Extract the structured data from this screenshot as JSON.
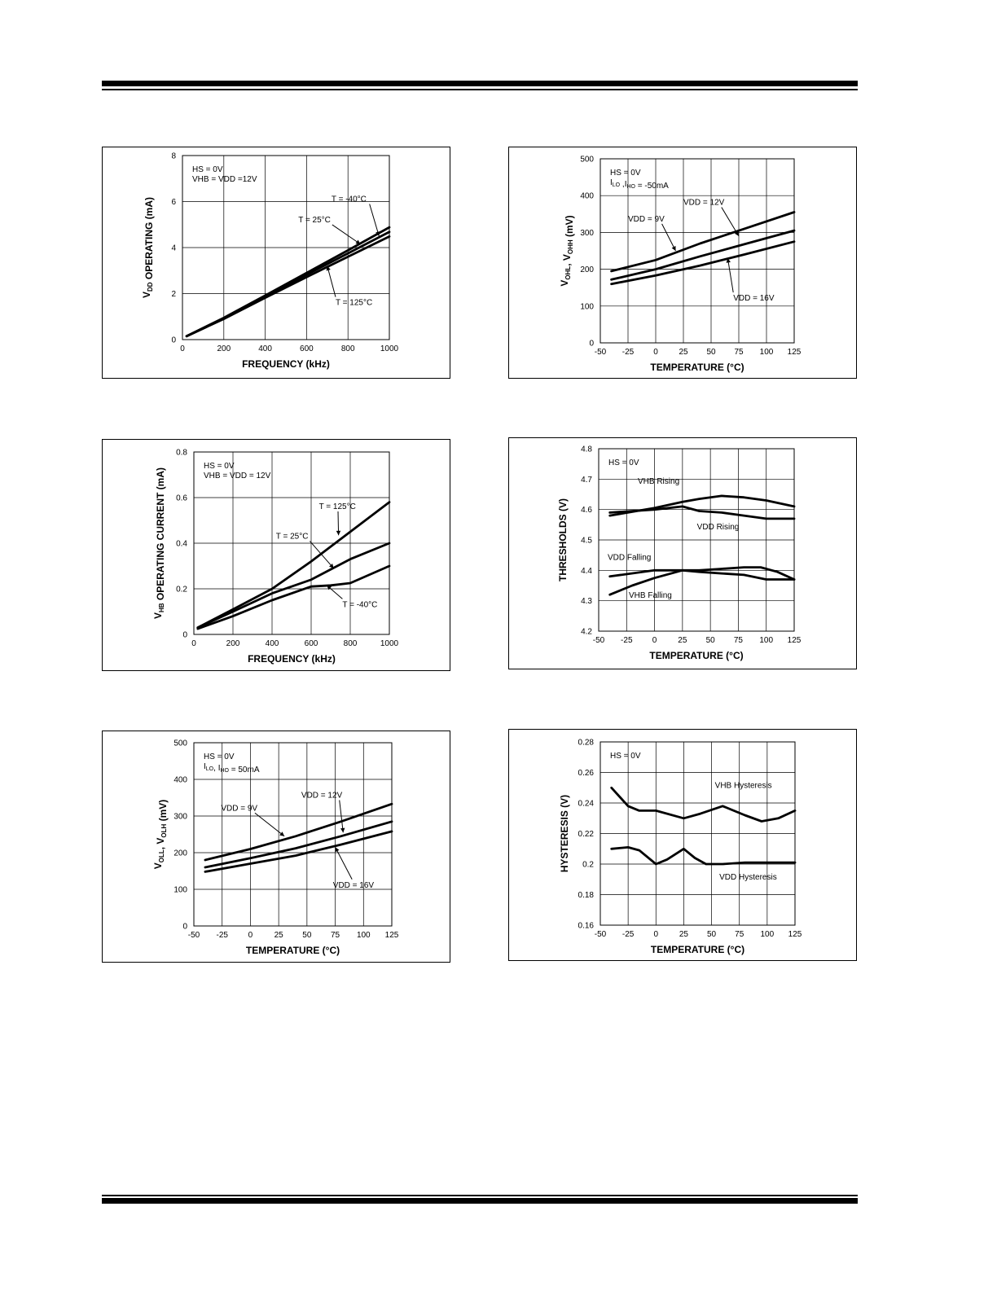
{
  "chart_data": [
    {
      "type": "line",
      "xlabel": "FREQUENCY (kHz)",
      "ylabel": "V_DD OPERATING (mA)",
      "ylabel_parts": [
        [
          "V",
          ""
        ],
        [
          "DD",
          "sub"
        ],
        [
          " OPERATING  (mA)",
          ""
        ]
      ],
      "xlim": [
        0,
        1000
      ],
      "ylim": [
        0,
        8
      ],
      "xticks": [
        0,
        200,
        400,
        600,
        800,
        1000
      ],
      "yticks": [
        0,
        2,
        4,
        6,
        8
      ],
      "conditions": [
        "HS = 0V",
        "VHB = VDD  =12V"
      ],
      "series": [
        {
          "name": "T = -40°C",
          "x": [
            20,
            200,
            400,
            600,
            800,
            1000
          ],
          "y": [
            0.15,
            0.95,
            1.92,
            2.9,
            3.88,
            4.88
          ]
        },
        {
          "name": "T = 25°C",
          "x": [
            20,
            200,
            400,
            600,
            800,
            1000
          ],
          "y": [
            0.15,
            0.92,
            1.88,
            2.82,
            3.75,
            4.68
          ]
        },
        {
          "name": "T = 125°C",
          "x": [
            20,
            200,
            400,
            600,
            800,
            1000
          ],
          "y": [
            0.15,
            0.9,
            1.82,
            2.72,
            3.6,
            4.48
          ]
        }
      ],
      "labels": [
        {
          "text": "T = -40°C",
          "at": [
            720,
            6.0
          ],
          "to": [
            950,
            4.5
          ]
        },
        {
          "text": "T = 25°C",
          "at": [
            560,
            5.1
          ],
          "to": [
            860,
            4.15
          ]
        },
        {
          "text": "T = 125°C",
          "at": [
            740,
            1.5
          ],
          "to": [
            700,
            3.2
          ]
        }
      ]
    },
    {
      "type": "line",
      "xlabel": "TEMPERATURE (°C)",
      "ylabel": "V_OHL, V_OHH (mV)",
      "ylabel_parts": [
        [
          "V",
          ""
        ],
        [
          "OHL",
          "sub"
        ],
        [
          ", V",
          ""
        ],
        [
          "OHH",
          "sub"
        ],
        [
          " (mV)",
          ""
        ]
      ],
      "xlim": [
        -50,
        125
      ],
      "ylim": [
        0,
        500
      ],
      "xticks": [
        -50,
        -25,
        0,
        25,
        50,
        75,
        100,
        125
      ],
      "yticks": [
        0,
        100,
        200,
        300,
        400,
        500
      ],
      "conditions": [
        "HS = 0V",
        "I_LO ,I_HO =  -50mA"
      ],
      "series": [
        {
          "name": "VDD = 9V",
          "x": [
            -40,
            0,
            40,
            80,
            125
          ],
          "y": [
            195,
            225,
            270,
            310,
            355
          ]
        },
        {
          "name": "VDD = 12V",
          "x": [
            -40,
            0,
            40,
            80,
            125
          ],
          "y": [
            172,
            200,
            235,
            268,
            305
          ]
        },
        {
          "name": "VDD = 16V",
          "x": [
            -40,
            0,
            40,
            80,
            125
          ],
          "y": [
            160,
            183,
            210,
            240,
            275
          ]
        }
      ],
      "labels": [
        {
          "text": "VDD = 12V",
          "at": [
            25,
            375
          ],
          "to": [
            75,
            290
          ]
        },
        {
          "text": "VDD = 9V",
          "at": [
            -25,
            330
          ],
          "to": [
            18,
            250
          ]
        },
        {
          "text": "VDD = 16V",
          "at": [
            70,
            115
          ],
          "to": [
            65,
            230
          ]
        }
      ]
    },
    {
      "type": "line",
      "xlabel": "FREQUENCY (kHz)",
      "ylabel": "V_HB OPERATING CURRENT (mA)",
      "ylabel_parts": [
        [
          "V",
          ""
        ],
        [
          "HB",
          "sub"
        ],
        [
          " OPERATING CURRENT (mA)",
          ""
        ]
      ],
      "xlim": [
        0,
        1000
      ],
      "ylim": [
        0,
        0.8
      ],
      "xticks": [
        0,
        200,
        400,
        600,
        800,
        1000
      ],
      "yticks": [
        0,
        0.2,
        0.4,
        0.6,
        0.8
      ],
      "conditions": [
        "HS = 0V",
        "VHB = VDD = 12V"
      ],
      "series": [
        {
          "name": "T = 125°C",
          "x": [
            20,
            200,
            400,
            600,
            800,
            1000
          ],
          "y": [
            0.03,
            0.11,
            0.2,
            0.32,
            0.45,
            0.58
          ]
        },
        {
          "name": "T = 25°C",
          "x": [
            20,
            200,
            400,
            600,
            800,
            1000
          ],
          "y": [
            0.03,
            0.1,
            0.18,
            0.24,
            0.33,
            0.4
          ]
        },
        {
          "name": "T = -40°C",
          "x": [
            20,
            200,
            400,
            600,
            700,
            800,
            1000
          ],
          "y": [
            0.025,
            0.08,
            0.15,
            0.21,
            0.215,
            0.225,
            0.3
          ]
        }
      ],
      "labels": [
        {
          "text": "T = 125°C",
          "at": [
            640,
            0.55
          ],
          "to": [
            740,
            0.435
          ]
        },
        {
          "text": "T = 25°C",
          "at": [
            420,
            0.42
          ],
          "to": [
            715,
            0.29
          ]
        },
        {
          "text": "T = -40°C",
          "at": [
            760,
            0.12
          ],
          "to": [
            680,
            0.215
          ]
        }
      ]
    },
    {
      "type": "line",
      "xlabel": "TEMPERATURE (°C)",
      "ylabel": "THRESHOLDS (V)",
      "ylabel_parts": [
        [
          "THRESHOLDS (V)",
          ""
        ]
      ],
      "xlim": [
        -50,
        125
      ],
      "ylim": [
        4.2,
        4.8
      ],
      "xticks": [
        -50,
        -25,
        0,
        25,
        50,
        75,
        100,
        125
      ],
      "yticks": [
        4.2,
        4.3,
        4.4,
        4.5,
        4.6,
        4.7,
        4.8
      ],
      "conditions": [
        "HS = 0V"
      ],
      "series": [
        {
          "name": "VHB Rising",
          "x": [
            -40,
            0,
            25,
            40,
            60,
            80,
            100,
            125
          ],
          "y": [
            4.58,
            4.605,
            4.625,
            4.635,
            4.645,
            4.64,
            4.63,
            4.61
          ]
        },
        {
          "name": "VDD Rising",
          "x": [
            -40,
            0,
            25,
            40,
            60,
            80,
            100,
            125
          ],
          "y": [
            4.59,
            4.6,
            4.61,
            4.595,
            4.59,
            4.58,
            4.57,
            4.57
          ]
        },
        {
          "name": "VDD Falling",
          "x": [
            -40,
            0,
            25,
            40,
            60,
            80,
            100,
            125
          ],
          "y": [
            4.38,
            4.4,
            4.4,
            4.395,
            4.39,
            4.385,
            4.37,
            4.37
          ]
        },
        {
          "name": "VHB Falling",
          "x": [
            -40,
            -20,
            0,
            25,
            40,
            60,
            80,
            95,
            110,
            125
          ],
          "y": [
            4.32,
            4.35,
            4.375,
            4.4,
            4.4,
            4.405,
            4.41,
            4.41,
            4.395,
            4.37
          ]
        }
      ],
      "labels": [
        {
          "text": "VHB Rising",
          "at": [
            -15,
            4.685
          ]
        },
        {
          "text": "VDD Rising",
          "at": [
            38,
            4.535
          ]
        },
        {
          "text": "VDD Falling",
          "at": [
            -42,
            4.435
          ]
        },
        {
          "text": "VHB Falling",
          "at": [
            -23,
            4.31
          ]
        }
      ]
    },
    {
      "type": "line",
      "xlabel": "TEMPERATURE (°C)",
      "ylabel": "V_OLL, V_OLH (mV)",
      "ylabel_parts": [
        [
          "V",
          ""
        ],
        [
          "OLL",
          "sub"
        ],
        [
          ", V",
          ""
        ],
        [
          "OLH",
          "sub"
        ],
        [
          " (mV)",
          ""
        ]
      ],
      "xlim": [
        -50,
        125
      ],
      "ylim": [
        0,
        500
      ],
      "xticks": [
        -50,
        -25,
        0,
        25,
        50,
        75,
        100,
        125
      ],
      "yticks": [
        0,
        100,
        200,
        300,
        400,
        500
      ],
      "conditions": [
        "HS = 0V",
        "I_LO, I_HO =  50mA"
      ],
      "series": [
        {
          "name": "VDD = 9V",
          "x": [
            -40,
            0,
            40,
            80,
            125
          ],
          "y": [
            180,
            210,
            245,
            285,
            333
          ]
        },
        {
          "name": "VDD = 12V",
          "x": [
            -40,
            0,
            40,
            80,
            125
          ],
          "y": [
            160,
            185,
            212,
            245,
            285
          ]
        },
        {
          "name": "VDD = 16V",
          "x": [
            -40,
            0,
            40,
            80,
            125
          ],
          "y": [
            148,
            170,
            192,
            222,
            258
          ]
        }
      ],
      "labels": [
        {
          "text": "VDD = 12V",
          "at": [
            45,
            350
          ],
          "to": [
            82,
            255
          ]
        },
        {
          "text": "VDD = 9V",
          "at": [
            -26,
            315
          ],
          "to": [
            30,
            245
          ]
        },
        {
          "text": "VDD = 16V",
          "at": [
            73,
            105
          ],
          "to": [
            75,
            215
          ]
        }
      ]
    },
    {
      "type": "line",
      "xlabel": "TEMPERATURE (°C)",
      "ylabel": "HYSTERESIS (V)",
      "ylabel_parts": [
        [
          "HYSTERESIS (V)",
          ""
        ]
      ],
      "xlim": [
        -50,
        125
      ],
      "ylim": [
        0.16,
        0.28
      ],
      "xticks": [
        -50,
        -25,
        0,
        25,
        50,
        75,
        100,
        125
      ],
      "yticks": [
        0.16,
        0.18,
        0.2,
        0.22,
        0.24,
        0.26,
        0.28
      ],
      "conditions": [
        "HS = 0V"
      ],
      "series": [
        {
          "name": "VHB Hysteresis",
          "x": [
            -40,
            -25,
            -15,
            0,
            25,
            40,
            60,
            80,
            95,
            110,
            125
          ],
          "y": [
            0.25,
            0.238,
            0.235,
            0.235,
            0.23,
            0.233,
            0.238,
            0.232,
            0.228,
            0.23,
            0.235
          ]
        },
        {
          "name": "VDD Hysteresis",
          "x": [
            -40,
            -25,
            -15,
            0,
            10,
            25,
            35,
            45,
            60,
            80,
            100,
            125
          ],
          "y": [
            0.21,
            0.211,
            0.209,
            0.2,
            0.203,
            0.21,
            0.204,
            0.2,
            0.2,
            0.201,
            0.201,
            0.201
          ]
        }
      ],
      "labels": [
        {
          "text": "VHB Hysteresis",
          "at": [
            53,
            0.25
          ]
        },
        {
          "text": "VDD Hysteresis",
          "at": [
            57,
            0.19
          ]
        }
      ]
    }
  ]
}
